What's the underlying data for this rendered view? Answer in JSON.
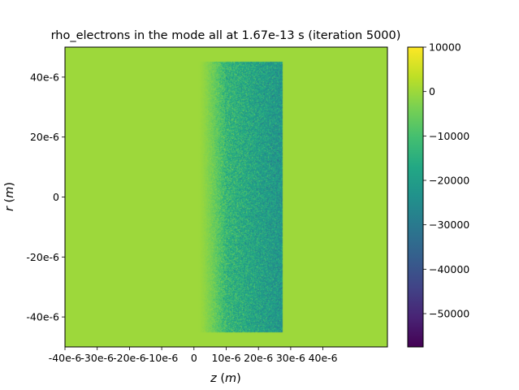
{
  "chart_data": {
    "type": "heatmap",
    "title": "rho_electrons in the mode all at 1.67e-13 s   (iteration 5000)",
    "xlabel": "z (m)",
    "xlabel_var": "z",
    "xlabel_unit": "m",
    "ylabel": "r (m)",
    "ylabel_var": "r",
    "ylabel_unit": "m",
    "xlim": [
      -4e-05,
      6e-05
    ],
    "ylim": [
      -5e-05,
      5e-05
    ],
    "x_ticks": [
      {
        "value": -4e-05,
        "label": "-40e-6"
      },
      {
        "value": -3e-05,
        "label": "-30e-6"
      },
      {
        "value": -2e-05,
        "label": "-20e-6"
      },
      {
        "value": -1e-05,
        "label": "-10e-6"
      },
      {
        "value": 0,
        "label": "0"
      },
      {
        "value": 1e-05,
        "label": "10e-6"
      },
      {
        "value": 2e-05,
        "label": "20e-6"
      },
      {
        "value": 3e-05,
        "label": "30e-6"
      },
      {
        "value": 4e-05,
        "label": "40e-6"
      }
    ],
    "y_ticks": [
      {
        "value": 4e-05,
        "label": "40e-6"
      },
      {
        "value": 2e-05,
        "label": "20e-6"
      },
      {
        "value": 0,
        "label": "0"
      },
      {
        "value": -2e-05,
        "label": "-20e-6"
      },
      {
        "value": -4e-05,
        "label": "-40e-6"
      }
    ],
    "background_value": 0,
    "plasma_region": {
      "z_start": 1.5e-06,
      "z_end": 2.75e-05,
      "r_min": -4.5e-05,
      "r_max": 4.5e-05,
      "mean_density_range": [
        -3000,
        -22000
      ],
      "noise_amplitude": 9000
    },
    "colorbar": {
      "colormap": "viridis",
      "vmin": -57500,
      "vmax": 10000,
      "ticks": [
        {
          "value": 10000,
          "label": "10000"
        },
        {
          "value": 0,
          "label": "0"
        },
        {
          "value": -10000,
          "label": "−10000"
        },
        {
          "value": -20000,
          "label": "−20000"
        },
        {
          "value": -30000,
          "label": "−30000"
        },
        {
          "value": -40000,
          "label": "−40000"
        },
        {
          "value": -50000,
          "label": "−50000"
        }
      ]
    },
    "grid": false,
    "legend": "none"
  }
}
